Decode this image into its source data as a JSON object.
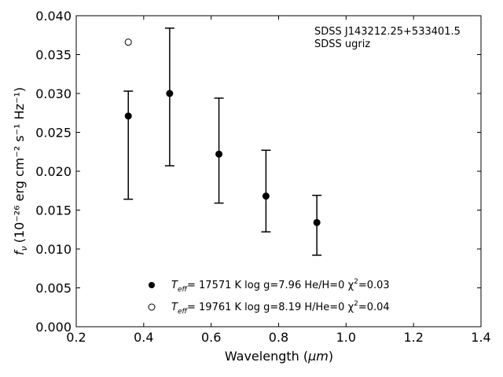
{
  "chart_data": {
    "type": "scatter",
    "xlabel_main": "Wavelength (",
    "xlabel_unit": "μm",
    "xlabel_close": ")",
    "ylabel_sym": "f",
    "ylabel_sub": "ν",
    "ylabel_text": "(10⁻²⁶ erg cm⁻² s⁻¹ Hz⁻¹)",
    "xlim": [
      0.2,
      1.4
    ],
    "ylim": [
      0.0,
      0.04
    ],
    "xticks": [
      0.2,
      0.4,
      0.6,
      0.8,
      1.0,
      1.2,
      1.4
    ],
    "xtick_labels": [
      "0.2",
      "0.4",
      "0.6",
      "0.8",
      "1.0",
      "1.2",
      "1.4"
    ],
    "yticks": [
      0.0,
      0.005,
      0.01,
      0.015,
      0.02,
      0.025,
      0.03,
      0.035,
      0.04
    ],
    "ytick_labels": [
      "0.000",
      "0.005",
      "0.010",
      "0.015",
      "0.020",
      "0.025",
      "0.030",
      "0.035",
      "0.040"
    ],
    "annotation": [
      "SDSS J143212.25+533401.5",
      "SDSS ugriz"
    ],
    "grid": false,
    "legend_position": "bottom-center",
    "series": [
      {
        "marker": "filled-circle",
        "name": "Teff= 17571 K  log g=7.96  He/H=0  χ²=0.03",
        "points": [
          {
            "x": 0.3543,
            "y": 0.0271,
            "ylo": 0.0164,
            "yhi": 0.0303
          },
          {
            "x": 0.477,
            "y": 0.03,
            "ylo": 0.0207,
            "yhi": 0.0384
          },
          {
            "x": 0.6231,
            "y": 0.0222,
            "ylo": 0.0159,
            "yhi": 0.0294
          },
          {
            "x": 0.7625,
            "y": 0.0168,
            "ylo": 0.0122,
            "yhi": 0.0227
          },
          {
            "x": 0.9134,
            "y": 0.0134,
            "ylo": 0.0092,
            "yhi": 0.0169
          }
        ]
      },
      {
        "marker": "open-circle",
        "name": "Teff= 19761 K  log g=8.19  H/He=0  χ²=0.04",
        "points": [
          {
            "x": 0.3543,
            "y": 0.0366
          }
        ]
      }
    ],
    "legend_entries": [
      {
        "label_pre": "T",
        "label_sub": "eff",
        "label_rest": "= 17571 K  log g=7.96  He/H=0  χ",
        "label_sup": "2",
        "label_end": "=0.03"
      },
      {
        "label_pre": "T",
        "label_sub": "eff",
        "label_rest": "= 19761 K  log g=8.19  H/He=0  χ",
        "label_sup": "2",
        "label_end": "=0.04"
      }
    ]
  }
}
